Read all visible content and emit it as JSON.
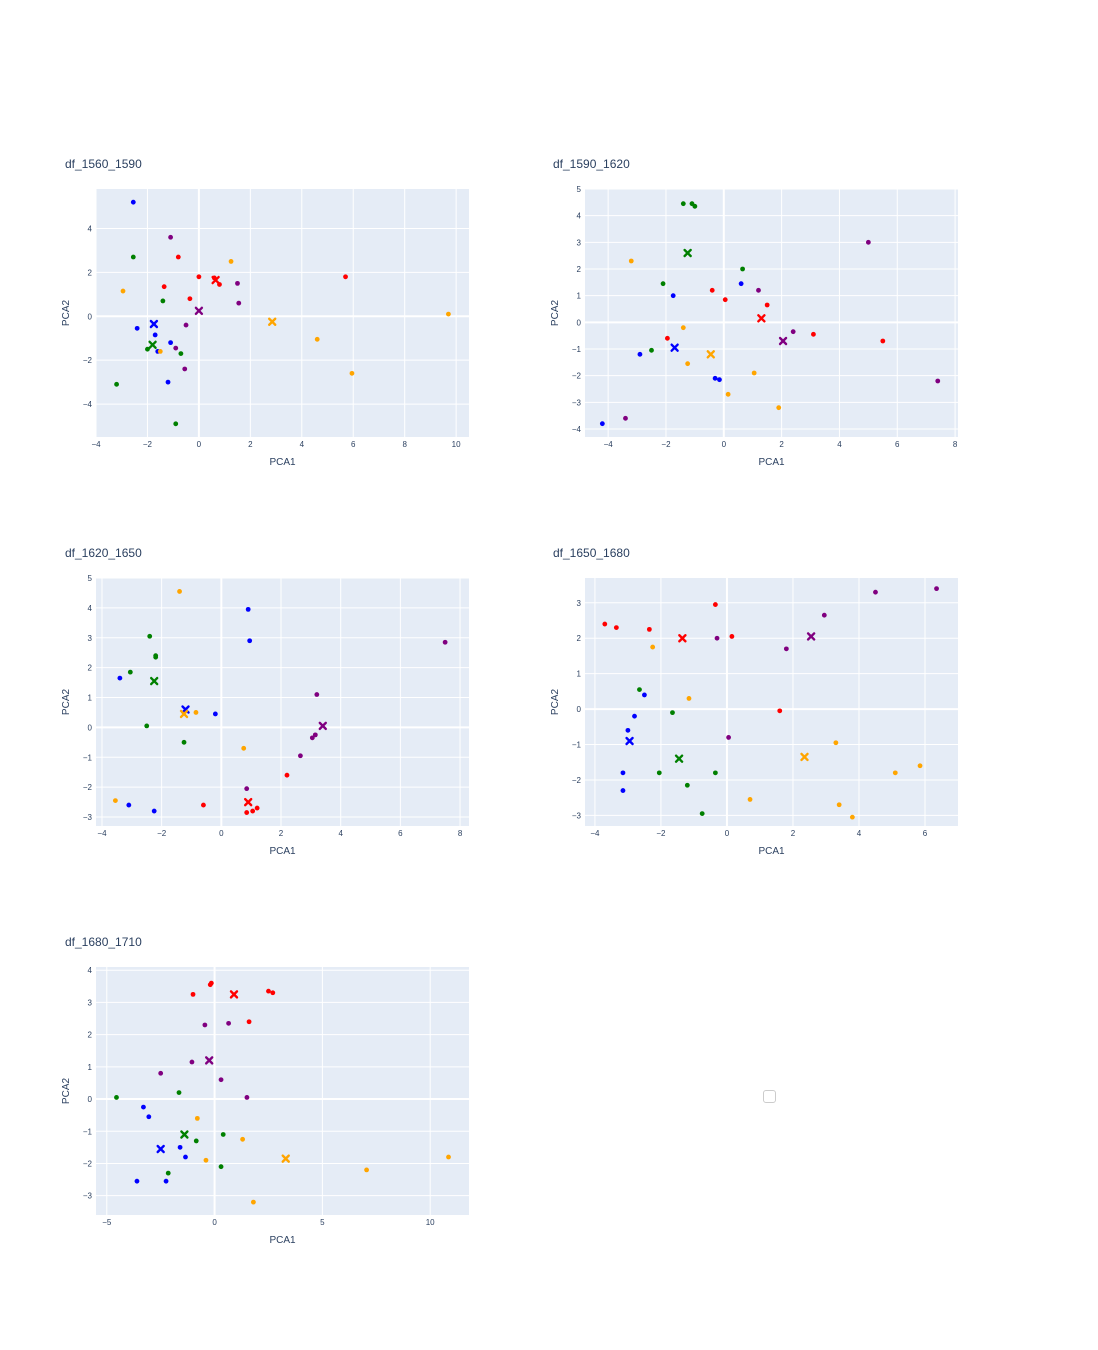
{
  "colors": {
    "plot_bg": "#e5ecf6",
    "grid": "#ffffff",
    "text": "#2a3f5f",
    "red": "#ff0000",
    "blue": "#0000ff",
    "green": "#008000",
    "orange": "#ffa500",
    "purple": "#800080"
  },
  "chart_data": [
    {
      "type": "scatter",
      "title": "df_1560_1590",
      "xlabel": "PCA1",
      "ylabel": "PCA2",
      "xlim": [
        -4,
        10.5
      ],
      "ylim": [
        -5.5,
        5.8
      ],
      "xticks": [
        -4,
        -2,
        0,
        2,
        4,
        6,
        8,
        10
      ],
      "xtick_labels": [
        "−4",
        "−2",
        "0",
        "2",
        "4",
        "6",
        "8",
        "10"
      ],
      "yticks": [
        -4,
        -2,
        0,
        2,
        4
      ],
      "ytick_labels": [
        "−4",
        "−2",
        "0",
        "2",
        "4"
      ],
      "series": [
        {
          "name": "red",
          "color": "#ff0000",
          "points": [
            [
              -0.8,
              2.7
            ],
            [
              -1.35,
              1.35
            ],
            [
              -0.35,
              0.8
            ],
            [
              0,
              1.8
            ],
            [
              0.8,
              1.45
            ],
            [
              5.7,
              1.8
            ],
            [
              0.6,
              1.75
            ]
          ],
          "centroid": [
            0.65,
            1.65
          ]
        },
        {
          "name": "blue",
          "color": "#0000ff",
          "points": [
            [
              -2.55,
              5.2
            ],
            [
              -2.4,
              -0.55
            ],
            [
              -1.7,
              -0.85
            ],
            [
              -1.1,
              -1.2
            ],
            [
              -1.6,
              -1.6
            ],
            [
              -1.2,
              -3.0
            ]
          ],
          "centroid": [
            -1.75,
            -0.35
          ]
        },
        {
          "name": "green",
          "color": "#008000",
          "points": [
            [
              -2.55,
              2.7
            ],
            [
              -1.4,
              0.7
            ],
            [
              -2.0,
              -1.5
            ],
            [
              -0.7,
              -1.7
            ],
            [
              -3.2,
              -3.1
            ],
            [
              -0.9,
              -4.9
            ]
          ],
          "centroid": [
            -1.8,
            -1.3
          ]
        },
        {
          "name": "orange",
          "color": "#ffa500",
          "points": [
            [
              -2.95,
              1.15
            ],
            [
              1.25,
              2.5
            ],
            [
              -1.5,
              -1.6
            ],
            [
              4.6,
              -1.05
            ],
            [
              5.95,
              -2.6
            ],
            [
              9.7,
              0.1
            ]
          ],
          "centroid": [
            2.85,
            -0.25
          ]
        },
        {
          "name": "purple",
          "color": "#800080",
          "points": [
            [
              -1.1,
              3.6
            ],
            [
              1.5,
              1.5
            ],
            [
              1.55,
              0.6
            ],
            [
              -0.5,
              -0.4
            ],
            [
              -0.9,
              -1.45
            ],
            [
              -0.55,
              -2.4
            ]
          ],
          "centroid": [
            0.0,
            0.25
          ]
        }
      ]
    },
    {
      "type": "scatter",
      "title": "df_1590_1620",
      "xlabel": "PCA1",
      "ylabel": "PCA2",
      "xlim": [
        -4.8,
        8.1
      ],
      "ylim": [
        -4.3,
        5.0
      ],
      "xticks": [
        -4,
        -2,
        0,
        2,
        4,
        6,
        8
      ],
      "xtick_labels": [
        "−4",
        "−2",
        "0",
        "2",
        "4",
        "6",
        "8"
      ],
      "yticks": [
        -4,
        -3,
        -2,
        -1,
        0,
        1,
        2,
        3,
        4,
        5
      ],
      "ytick_labels": [
        "−4",
        "−3",
        "−2",
        "−1",
        "0",
        "1",
        "2",
        "3",
        "4",
        "5"
      ],
      "series": [
        {
          "name": "red",
          "color": "#ff0000",
          "points": [
            [
              -0.4,
              1.2
            ],
            [
              0.05,
              0.85
            ],
            [
              1.5,
              0.65
            ],
            [
              -1.95,
              -0.6
            ],
            [
              3.1,
              -0.45
            ],
            [
              5.5,
              -0.7
            ]
          ],
          "centroid": [
            1.3,
            0.15
          ]
        },
        {
          "name": "blue",
          "color": "#0000ff",
          "points": [
            [
              -1.75,
              1.0
            ],
            [
              0.6,
              1.45
            ],
            [
              -2.9,
              -1.2
            ],
            [
              -0.3,
              -2.1
            ],
            [
              -0.15,
              -2.15
            ],
            [
              -4.2,
              -3.8
            ]
          ],
          "centroid": [
            -1.7,
            -0.95
          ]
        },
        {
          "name": "green",
          "color": "#008000",
          "points": [
            [
              -1.4,
              4.45
            ],
            [
              -1.1,
              4.45
            ],
            [
              -1.0,
              4.35
            ],
            [
              0.65,
              2.0
            ],
            [
              -2.1,
              1.45
            ],
            [
              -2.5,
              -1.05
            ]
          ],
          "centroid": [
            -1.25,
            2.6
          ]
        },
        {
          "name": "orange",
          "color": "#ffa500",
          "points": [
            [
              -3.2,
              2.3
            ],
            [
              -1.4,
              -0.2
            ],
            [
              -1.25,
              -1.55
            ],
            [
              1.05,
              -1.9
            ],
            [
              0.15,
              -2.7
            ],
            [
              1.9,
              -3.2
            ]
          ],
          "centroid": [
            -0.45,
            -1.2
          ]
        },
        {
          "name": "purple",
          "color": "#800080",
          "points": [
            [
              5.0,
              3.0
            ],
            [
              1.2,
              1.2
            ],
            [
              2.4,
              -0.35
            ],
            [
              7.4,
              -2.2
            ],
            [
              -3.4,
              -3.6
            ]
          ],
          "centroid": [
            2.05,
            -0.7
          ]
        }
      ]
    },
    {
      "type": "scatter",
      "title": "df_1620_1650",
      "xlabel": "PCA1",
      "ylabel": "PCA2",
      "xlim": [
        -4.2,
        8.3
      ],
      "ylim": [
        -3.3,
        5.0
      ],
      "xticks": [
        -4,
        -2,
        0,
        2,
        4,
        6,
        8
      ],
      "xtick_labels": [
        "−4",
        "−2",
        "0",
        "2",
        "4",
        "6",
        "8"
      ],
      "yticks": [
        -3,
        -2,
        -1,
        0,
        1,
        2,
        3,
        4,
        5
      ],
      "ytick_labels": [
        "−3",
        "−2",
        "−1",
        "0",
        "1",
        "2",
        "3",
        "4",
        "5"
      ],
      "series": [
        {
          "name": "red",
          "color": "#ff0000",
          "points": [
            [
              2.2,
              -1.6
            ],
            [
              -0.6,
              -2.6
            ],
            [
              0.85,
              -2.85
            ],
            [
              1.05,
              -2.8
            ],
            [
              1.2,
              -2.7
            ]
          ],
          "centroid": [
            0.9,
            -2.5
          ]
        },
        {
          "name": "blue",
          "color": "#0000ff",
          "points": [
            [
              0.9,
              3.95
            ],
            [
              0.95,
              2.9
            ],
            [
              -3.4,
              1.65
            ],
            [
              -0.2,
              0.45
            ],
            [
              -3.1,
              -2.6
            ],
            [
              -2.25,
              -2.8
            ]
          ],
          "centroid": [
            -1.2,
            0.6
          ]
        },
        {
          "name": "green",
          "color": "#008000",
          "points": [
            [
              -2.4,
              3.05
            ],
            [
              -2.2,
              2.4
            ],
            [
              -2.2,
              2.35
            ],
            [
              -3.05,
              1.85
            ],
            [
              -2.5,
              0.05
            ],
            [
              -1.25,
              -0.5
            ]
          ],
          "centroid": [
            -2.25,
            1.55
          ]
        },
        {
          "name": "orange",
          "color": "#ffa500",
          "points": [
            [
              -1.4,
              4.55
            ],
            [
              -0.85,
              0.5
            ],
            [
              0.75,
              -0.7
            ],
            [
              -3.55,
              -2.45
            ]
          ],
          "centroid": [
            -1.25,
            0.45
          ]
        },
        {
          "name": "purple",
          "color": "#800080",
          "points": [
            [
              7.5,
              2.85
            ],
            [
              3.2,
              1.1
            ],
            [
              3.15,
              -0.25
            ],
            [
              3.05,
              -0.35
            ],
            [
              2.65,
              -0.95
            ],
            [
              0.85,
              -2.05
            ]
          ],
          "centroid": [
            3.4,
            0.05
          ]
        }
      ]
    },
    {
      "type": "scatter",
      "title": "df_1650_1680",
      "xlabel": "PCA1",
      "ylabel": "PCA2",
      "xlim": [
        -4.3,
        7.0
      ],
      "ylim": [
        -3.3,
        3.7
      ],
      "xticks": [
        -4,
        -2,
        0,
        2,
        4,
        6
      ],
      "xtick_labels": [
        "−4",
        "−2",
        "0",
        "2",
        "4",
        "6"
      ],
      "yticks": [
        -3,
        -2,
        -1,
        0,
        1,
        2,
        3
      ],
      "ytick_labels": [
        "−3",
        "−2",
        "−1",
        "0",
        "1",
        "2",
        "3"
      ],
      "series": [
        {
          "name": "red",
          "color": "#ff0000",
          "points": [
            [
              -3.7,
              2.4
            ],
            [
              -3.35,
              2.3
            ],
            [
              -2.35,
              2.25
            ],
            [
              -0.35,
              2.95
            ],
            [
              0.15,
              2.05
            ],
            [
              1.6,
              -0.05
            ]
          ],
          "centroid": [
            -1.35,
            2.0
          ]
        },
        {
          "name": "blue",
          "color": "#0000ff",
          "points": [
            [
              -2.5,
              0.4
            ],
            [
              -2.8,
              -0.2
            ],
            [
              -3.0,
              -0.6
            ],
            [
              -3.15,
              -1.8
            ],
            [
              -3.15,
              -2.3
            ]
          ],
          "centroid": [
            -2.95,
            -0.9
          ]
        },
        {
          "name": "green",
          "color": "#008000",
          "points": [
            [
              -2.65,
              0.55
            ],
            [
              -1.65,
              -0.1
            ],
            [
              -2.05,
              -1.8
            ],
            [
              -0.35,
              -1.8
            ],
            [
              -1.2,
              -2.15
            ],
            [
              -0.75,
              -2.95
            ]
          ],
          "centroid": [
            -1.45,
            -1.4
          ]
        },
        {
          "name": "orange",
          "color": "#ffa500",
          "points": [
            [
              -2.25,
              1.75
            ],
            [
              -1.15,
              0.3
            ],
            [
              3.3,
              -0.95
            ],
            [
              5.85,
              -1.6
            ],
            [
              5.1,
              -1.8
            ],
            [
              0.7,
              -2.55
            ],
            [
              3.4,
              -2.7
            ],
            [
              3.8,
              -3.05
            ]
          ],
          "centroid": [
            2.35,
            -1.35
          ]
        },
        {
          "name": "purple",
          "color": "#800080",
          "points": [
            [
              6.35,
              3.4
            ],
            [
              4.5,
              3.3
            ],
            [
              2.95,
              2.65
            ],
            [
              -0.3,
              2.0
            ],
            [
              1.8,
              1.7
            ],
            [
              0.05,
              -0.8
            ]
          ],
          "centroid": [
            2.55,
            2.05
          ]
        }
      ]
    },
    {
      "type": "scatter",
      "title": "df_1680_1710",
      "xlabel": "PCA1",
      "ylabel": "PCA2",
      "xlim": [
        -5.5,
        11.8
      ],
      "ylim": [
        -3.6,
        4.1
      ],
      "xticks": [
        -5,
        0,
        5,
        10
      ],
      "xtick_labels": [
        "−5",
        "0",
        "5",
        "10"
      ],
      "yticks": [
        -3,
        -2,
        -1,
        0,
        1,
        2,
        3,
        4
      ],
      "ytick_labels": [
        "−3",
        "−2",
        "−1",
        "0",
        "1",
        "2",
        "3",
        "4"
      ],
      "series": [
        {
          "name": "red",
          "color": "#ff0000",
          "points": [
            [
              -0.15,
              3.6
            ],
            [
              -0.2,
              3.55
            ],
            [
              -1.0,
              3.25
            ],
            [
              2.5,
              3.35
            ],
            [
              2.7,
              3.3
            ],
            [
              1.6,
              2.4
            ]
          ],
          "centroid": [
            0.9,
            3.25
          ]
        },
        {
          "name": "blue",
          "color": "#0000ff",
          "points": [
            [
              -3.3,
              -0.25
            ],
            [
              -3.05,
              -0.55
            ],
            [
              -1.6,
              -1.5
            ],
            [
              -1.35,
              -1.8
            ],
            [
              -3.6,
              -2.55
            ],
            [
              -2.25,
              -2.55
            ]
          ],
          "centroid": [
            -2.5,
            -1.55
          ]
        },
        {
          "name": "green",
          "color": "#008000",
          "points": [
            [
              -4.55,
              0.05
            ],
            [
              -1.65,
              0.2
            ],
            [
              -0.85,
              -1.3
            ],
            [
              0.4,
              -1.1
            ],
            [
              -2.15,
              -2.3
            ],
            [
              0.3,
              -2.1
            ]
          ],
          "centroid": [
            -1.4,
            -1.1
          ]
        },
        {
          "name": "orange",
          "color": "#ffa500",
          "points": [
            [
              -0.8,
              -0.6
            ],
            [
              1.3,
              -1.25
            ],
            [
              -0.4,
              -1.9
            ],
            [
              7.05,
              -2.2
            ],
            [
              10.85,
              -1.8
            ],
            [
              1.8,
              -3.2
            ]
          ],
          "centroid": [
            3.3,
            -1.85
          ]
        },
        {
          "name": "purple",
          "color": "#800080",
          "points": [
            [
              -0.45,
              2.3
            ],
            [
              0.65,
              2.35
            ],
            [
              -1.05,
              1.15
            ],
            [
              -2.5,
              0.8
            ],
            [
              0.3,
              0.6
            ],
            [
              1.5,
              0.05
            ]
          ],
          "centroid": [
            -0.25,
            1.2
          ]
        }
      ]
    }
  ]
}
